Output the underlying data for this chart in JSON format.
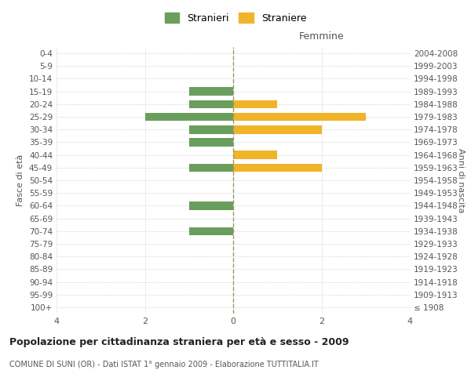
{
  "age_groups": [
    "100+",
    "95-99",
    "90-94",
    "85-89",
    "80-84",
    "75-79",
    "70-74",
    "65-69",
    "60-64",
    "55-59",
    "50-54",
    "45-49",
    "40-44",
    "35-39",
    "30-34",
    "25-29",
    "20-24",
    "15-19",
    "10-14",
    "5-9",
    "0-4"
  ],
  "birth_years": [
    "≤ 1908",
    "1909-1913",
    "1914-1918",
    "1919-1923",
    "1924-1928",
    "1929-1933",
    "1934-1938",
    "1939-1943",
    "1944-1948",
    "1949-1953",
    "1954-1958",
    "1959-1963",
    "1964-1968",
    "1969-1973",
    "1974-1978",
    "1979-1983",
    "1984-1988",
    "1989-1993",
    "1994-1998",
    "1999-2003",
    "2004-2008"
  ],
  "males": [
    0,
    0,
    0,
    0,
    0,
    0,
    1,
    0,
    1,
    0,
    0,
    1,
    0,
    1,
    1,
    2,
    1,
    1,
    0,
    0,
    0
  ],
  "females": [
    0,
    0,
    0,
    0,
    0,
    0,
    0,
    0,
    0,
    0,
    0,
    2,
    1,
    0,
    2,
    3,
    1,
    0,
    0,
    0,
    0
  ],
  "male_color": "#6a9e5c",
  "female_color": "#f0b429",
  "title": "Popolazione per cittadinanza straniera per età e sesso - 2009",
  "subtitle": "COMUNE DI SUNI (OR) - Dati ISTAT 1° gennaio 2009 - Elaborazione TUTTITALIA.IT",
  "xlabel_right": "Femmine",
  "ylabel_left": "Fasce di età",
  "ylabel_right": "Anni di nascita",
  "legend_male": "Stranieri",
  "legend_female": "Straniere",
  "xlim": 4,
  "background_color": "#ffffff",
  "grid_color": "#cccccc"
}
